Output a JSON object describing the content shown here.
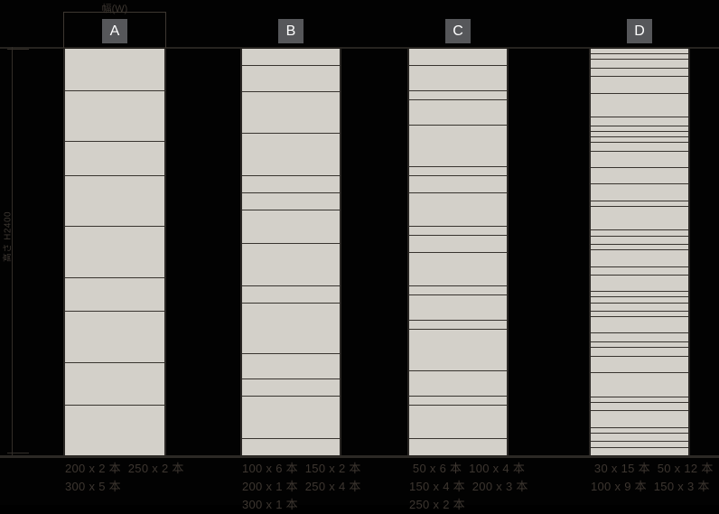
{
  "dimensions": {
    "width_label": "幅(W)",
    "height_label": "高さ H2400",
    "total_height_mm": 2400
  },
  "columns": [
    {
      "id": "A",
      "label": "A",
      "caption_lines": [
        "200 x 2 本  250 x 2 本",
        "300 x 5 本"
      ],
      "boards_mm": [
        250,
        300,
        200,
        300,
        300,
        200,
        300,
        250,
        300
      ]
    },
    {
      "id": "B",
      "label": "B",
      "caption_lines": [
        "100 x 6 本  150 x 2 本",
        "200 x 1 本  250 x 4 本",
        "300 x 1 本"
      ],
      "boards_mm": [
        100,
        150,
        250,
        250,
        100,
        100,
        200,
        250,
        100,
        300,
        150,
        100,
        250,
        100
      ]
    },
    {
      "id": "C",
      "label": "C",
      "caption_lines": [
        " 50 x 6 本  100 x 4 本",
        "150 x 4 本  200 x 3 本",
        "250 x 2 本"
      ],
      "boards_mm": [
        100,
        150,
        50,
        150,
        250,
        50,
        100,
        200,
        50,
        100,
        200,
        50,
        150,
        50,
        250,
        150,
        50,
        200,
        100
      ]
    },
    {
      "id": "D",
      "label": "D",
      "caption_lines": [
        " 30 x 15 本  50 x 12 本",
        "100 x 9 本  150 x 3 本"
      ],
      "boards_mm": [
        30,
        30,
        50,
        50,
        100,
        150,
        50,
        30,
        30,
        30,
        50,
        100,
        100,
        100,
        30,
        150,
        30,
        50,
        30,
        100,
        50,
        100,
        30,
        30,
        50,
        30,
        100,
        50,
        30,
        50,
        100,
        150,
        30,
        50,
        100,
        30,
        50,
        30,
        50
      ]
    }
  ],
  "colors": {
    "background": "#020202",
    "board_fill": "#d3d0c9",
    "board_gap": "#38342f",
    "header_box": "#56575a",
    "header_text": "#ffffff",
    "caption_text": "#3d3630",
    "dimension_line": "#332e29",
    "guide_line": "#26231f"
  }
}
